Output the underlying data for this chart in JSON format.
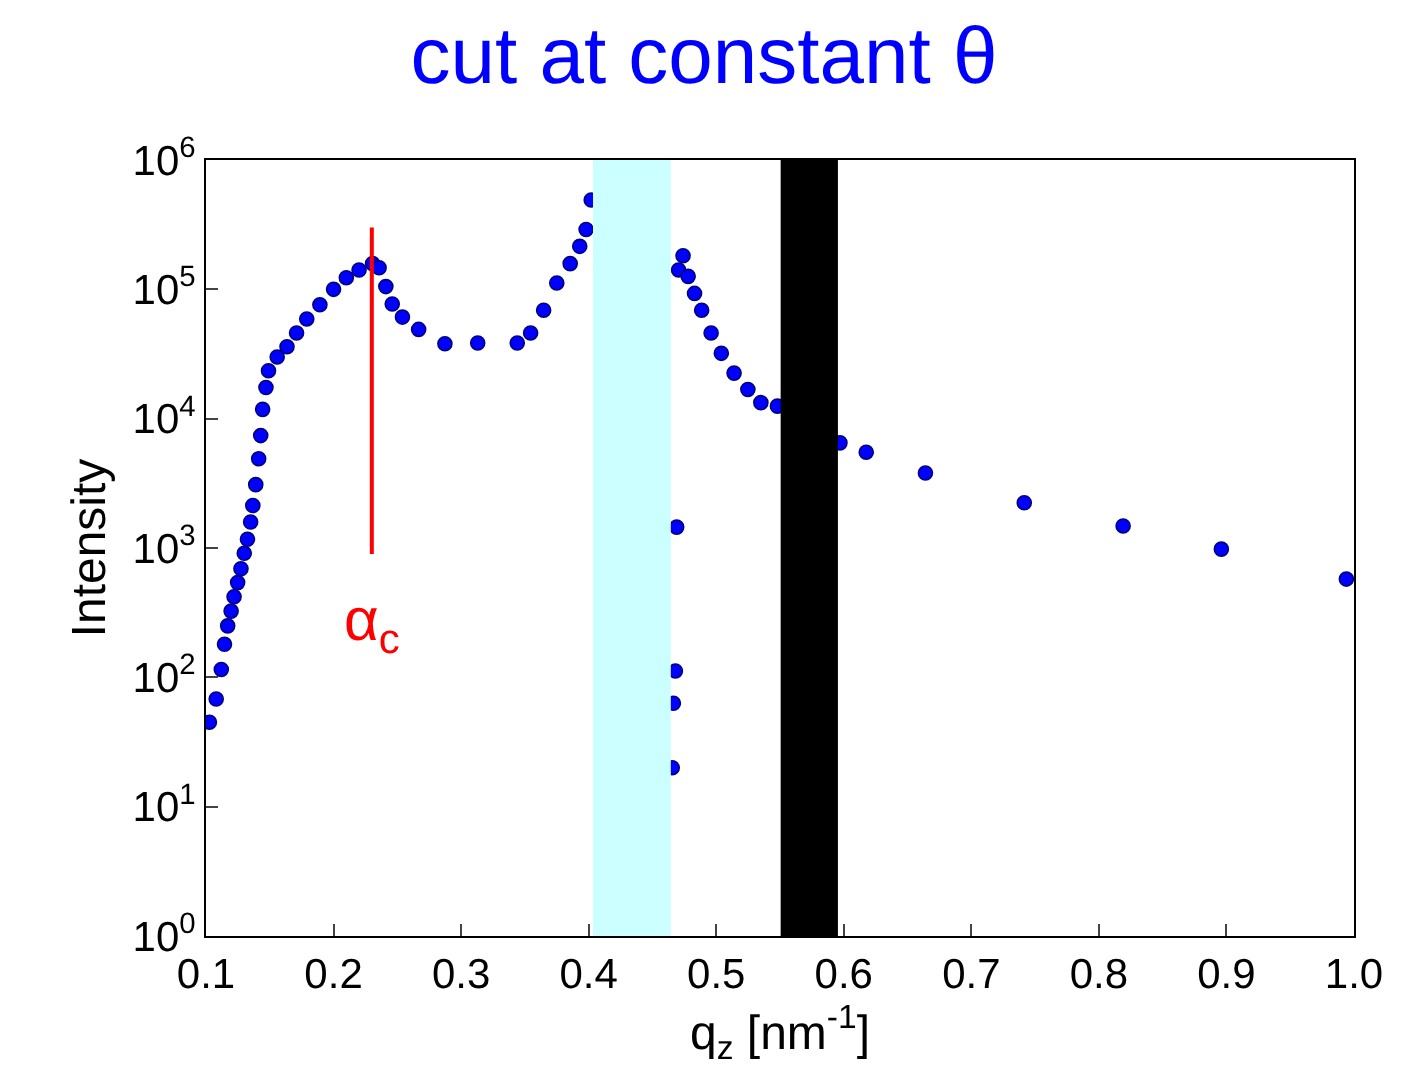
{
  "chart_data": {
    "type": "scatter",
    "title": "cut at constant θ",
    "xlabel": "q$_{z}$ [nm$^{-1}$]",
    "ylabel": "Intensity",
    "log": "y",
    "marker": "circle",
    "xlim": [
      0.1,
      1.0
    ],
    "xticks": [
      0.1,
      0.2,
      0.3,
      0.4,
      0.5,
      0.6,
      0.7,
      0.8,
      0.9,
      {
        "value": 1.0,
        "label": "1.0"
      }
    ],
    "ylim": [
      1,
      1000000
    ],
    "yticks": [
      {
        "value": 1,
        "label": "10$^{0}$"
      },
      {
        "value": 10,
        "label": "10$^{1}$"
      },
      {
        "value": 100,
        "label": "10$^{2}$"
      },
      {
        "value": 1000,
        "label": "10$^{3}$"
      },
      {
        "value": 10000,
        "label": "10$^{4}$"
      },
      {
        "value": 100000,
        "label": "10$^{5}$"
      },
      {
        "value": 1000000,
        "label": "10$^{6}$"
      }
    ],
    "series": [
      {
        "color": "#0000ff",
        "x": [
          0.1027,
          0.108,
          0.112,
          0.1145,
          0.117,
          0.1197,
          0.122,
          0.1248,
          0.1274,
          0.13,
          0.1325,
          0.135,
          0.1367,
          0.139,
          0.1413,
          0.1429,
          0.1444,
          0.147,
          0.149,
          0.1558,
          0.1635,
          0.171,
          0.179,
          0.1893,
          0.2,
          0.21,
          0.22,
          0.2306,
          0.2357,
          0.241,
          0.246,
          0.254,
          0.2667,
          0.2873,
          0.313,
          0.344,
          0.3545,
          0.3647,
          0.375,
          0.3855,
          0.393,
          0.398,
          0.402,
          0.4655,
          0.4664,
          0.468,
          0.469,
          0.4705,
          0.474,
          0.478,
          0.483,
          0.4886,
          0.496,
          0.504,
          0.514,
          0.5248,
          0.535,
          0.548,
          0.597,
          0.6176,
          0.664,
          0.7415,
          0.819,
          0.896,
          0.994
        ],
        "values": [
          45,
          68,
          115,
          180,
          250,
          325,
          420,
          540,
          690,
          910,
          1170,
          1590,
          2130,
          3090,
          4900,
          7400,
          11800,
          17400,
          23500,
          30000,
          36000,
          46000,
          59000,
          76000,
          100000,
          123000,
          141000,
          158000,
          147000,
          105000,
          77000,
          61000,
          49000,
          38000,
          38500,
          38500,
          46000,
          69000,
          112000,
          158000,
          215000,
          290000,
          490000,
          20,
          63,
          112,
          1450,
          141000,
          182000,
          126000,
          93000,
          69000,
          46000,
          32000,
          22500,
          16800,
          13300,
          12500,
          6500,
          5500,
          3800,
          2240,
          1480,
          980,
          575
        ]
      },
      {
        "type": "line",
        "marker": "none",
        "color": "#ff0000",
        "x": [
          0.23,
          0.23
        ],
        "values": [
          300000,
          900
        ]
      }
    ],
    "bands": [
      {
        "axis": "x",
        "from": 0.4034,
        "to": 0.4644,
        "color": "#ccffff"
      },
      {
        "axis": "x",
        "from": 0.5505,
        "to": 0.5954,
        "color": "#000000"
      }
    ],
    "annotations": [
      {
        "text": "α$_{c}$",
        "x": 0.23,
        "y": 900
      }
    ]
  }
}
